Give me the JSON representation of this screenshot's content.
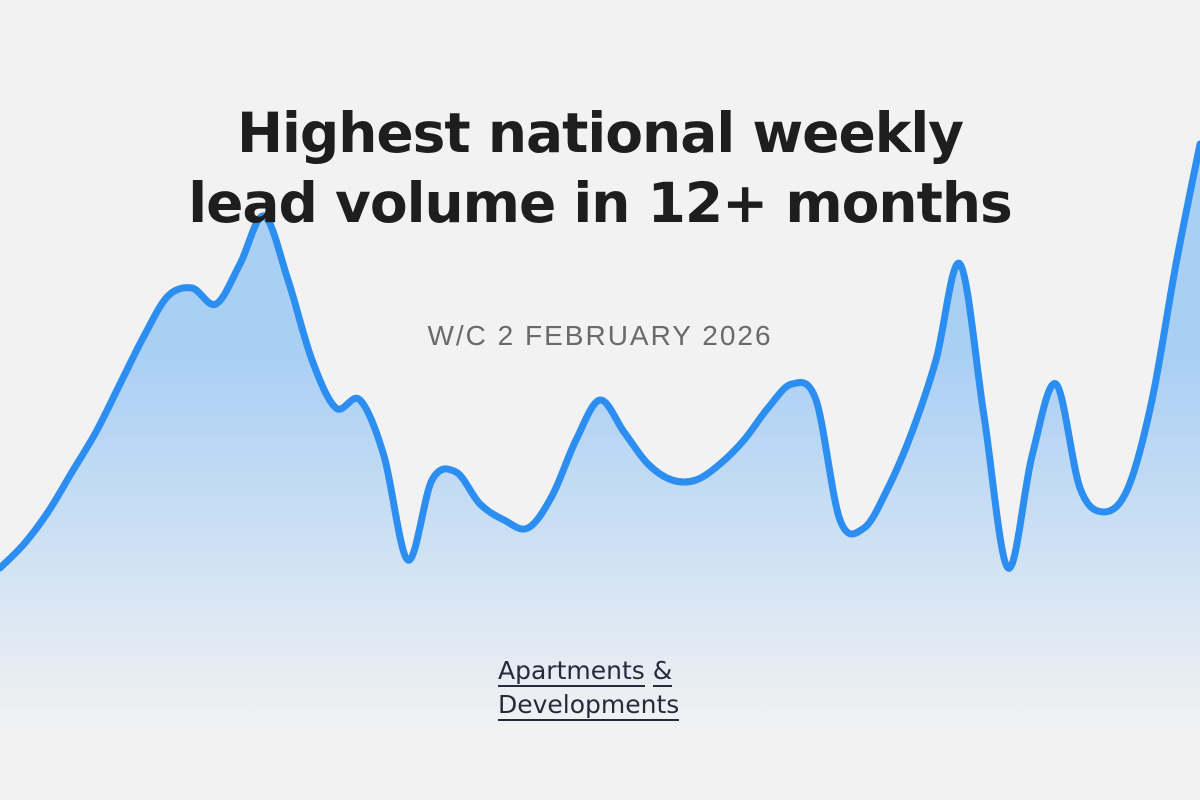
{
  "headline": {
    "line1": "Highest national weekly",
    "line2": "lead volume in 12+ months"
  },
  "subtitle": "W/C 2 FEBRUARY 2026",
  "brand": {
    "line1_word": "Apartments",
    "line1_amp": "&",
    "line2_word": "Developments"
  },
  "colors": {
    "line": "#2b8ef0",
    "fill_top": "#a9cff5",
    "fill_bottom": "#f2f2f2",
    "background": "#f2f2f2",
    "headline": "#1e1e1e",
    "subtitle": "#6a6a6a",
    "brand": "#252b3d"
  },
  "chart_data": {
    "type": "area",
    "title": "",
    "xlabel": "",
    "ylabel": "",
    "axes_visible": false,
    "grid": false,
    "ylim": [
      0,
      100
    ],
    "series": [
      {
        "values": [
          29,
          32,
          36,
          41,
          46,
          52,
          58,
          63,
          64,
          62,
          67,
          73,
          65,
          55,
          49,
          50,
          43,
          30,
          40,
          41,
          37,
          35,
          34,
          38,
          45,
          50,
          46,
          42,
          40,
          40,
          42,
          45,
          49,
          52,
          50,
          35,
          34,
          39,
          46,
          55,
          67,
          48,
          29,
          43,
          52,
          39,
          36,
          39,
          50,
          67,
          82
        ]
      }
    ]
  }
}
